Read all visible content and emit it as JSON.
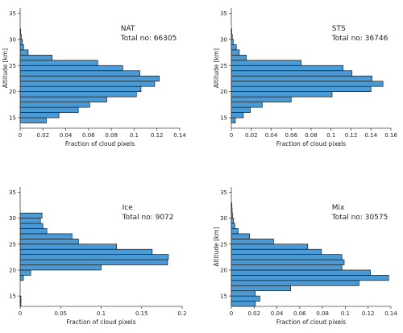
{
  "chart_data": [
    {
      "type": "bar",
      "orientation": "horizontal",
      "annotation_name": "NAT",
      "annotation_total": "Total no: 66305",
      "xlabel": "Fraction of cloud pixels",
      "ylabel": "Altitude [km]",
      "xlim": [
        0,
        0.14
      ],
      "ylim": [
        13,
        36
      ],
      "xticks": [
        "0",
        "0.02",
        "0.04",
        "0.06",
        "0.08",
        "0.1",
        "0.12",
        "0.14"
      ],
      "yticks": [
        "15",
        "20",
        "25",
        "30",
        "35"
      ],
      "bin_km": 1,
      "bins": [
        {
          "alt": 14,
          "value": 0.023
        },
        {
          "alt": 15,
          "value": 0.034
        },
        {
          "alt": 16,
          "value": 0.051
        },
        {
          "alt": 17,
          "value": 0.061
        },
        {
          "alt": 18,
          "value": 0.076
        },
        {
          "alt": 19,
          "value": 0.102
        },
        {
          "alt": 20,
          "value": 0.106
        },
        {
          "alt": 21,
          "value": 0.118
        },
        {
          "alt": 22,
          "value": 0.122
        },
        {
          "alt": 23,
          "value": 0.105
        },
        {
          "alt": 24,
          "value": 0.09
        },
        {
          "alt": 25,
          "value": 0.068
        },
        {
          "alt": 26,
          "value": 0.028
        },
        {
          "alt": 27,
          "value": 0.007
        },
        {
          "alt": 28,
          "value": 0.003
        },
        {
          "alt": 29,
          "value": 0.002
        },
        {
          "alt": 30,
          "value": 0.001
        },
        {
          "alt": 31,
          "value": 0.0005
        }
      ]
    },
    {
      "type": "bar",
      "orientation": "horizontal",
      "annotation_name": "STS",
      "annotation_total": "Total no: 36746",
      "xlabel": "Fraction of cloud pixels",
      "ylabel": "Altitude [km]",
      "xlim": [
        0,
        0.16
      ],
      "ylim": [
        13,
        36
      ],
      "xticks": [
        "0",
        "0.02",
        "0.04",
        "0.06",
        "0.08",
        "0.1",
        "0.12",
        "0.14",
        "0.16"
      ],
      "yticks": [
        "15",
        "20",
        "25",
        "30",
        "35"
      ],
      "bin_km": 1,
      "bins": [
        {
          "alt": 14,
          "value": 0.004
        },
        {
          "alt": 15,
          "value": 0.012
        },
        {
          "alt": 16,
          "value": 0.019
        },
        {
          "alt": 17,
          "value": 0.031
        },
        {
          "alt": 18,
          "value": 0.06
        },
        {
          "alt": 19,
          "value": 0.101
        },
        {
          "alt": 20,
          "value": 0.14
        },
        {
          "alt": 21,
          "value": 0.152
        },
        {
          "alt": 22,
          "value": 0.141
        },
        {
          "alt": 23,
          "value": 0.121
        },
        {
          "alt": 24,
          "value": 0.112
        },
        {
          "alt": 25,
          "value": 0.07
        },
        {
          "alt": 26,
          "value": 0.015
        },
        {
          "alt": 27,
          "value": 0.008
        },
        {
          "alt": 28,
          "value": 0.005
        },
        {
          "alt": 29,
          "value": 0.002
        },
        {
          "alt": 30,
          "value": 0.001
        },
        {
          "alt": 31,
          "value": 0.0005
        }
      ]
    },
    {
      "type": "bar",
      "orientation": "horizontal",
      "annotation_name": "Ice",
      "annotation_total": "Total no: 9072",
      "xlabel": "Fraction of cloud pixels",
      "ylabel": "",
      "xlim": [
        0,
        0.2
      ],
      "ylim": [
        13,
        36
      ],
      "xticks": [
        "0",
        "0.05",
        "0.1",
        "0.15",
        "0.2"
      ],
      "yticks": [
        "15",
        "20",
        "25",
        "30",
        "35"
      ],
      "bin_km": 1,
      "bins": [
        {
          "alt": 13,
          "value": 0.001
        },
        {
          "alt": 14,
          "value": 0.001
        },
        {
          "alt": 18,
          "value": 0.004
        },
        {
          "alt": 19,
          "value": 0.013
        },
        {
          "alt": 20,
          "value": 0.1
        },
        {
          "alt": 21,
          "value": 0.182
        },
        {
          "alt": 22,
          "value": 0.183
        },
        {
          "alt": 23,
          "value": 0.163
        },
        {
          "alt": 24,
          "value": 0.119
        },
        {
          "alt": 25,
          "value": 0.072
        },
        {
          "alt": 26,
          "value": 0.064
        },
        {
          "alt": 27,
          "value": 0.033
        },
        {
          "alt": 28,
          "value": 0.028
        },
        {
          "alt": 29,
          "value": 0.025
        },
        {
          "alt": 30,
          "value": 0.027
        }
      ]
    },
    {
      "type": "bar",
      "orientation": "horizontal",
      "annotation_name": "Mix",
      "annotation_total": "Total no: 30575",
      "xlabel": "Fraction of cloud pixels",
      "ylabel": "Altitude [km]",
      "xlim": [
        0,
        0.14
      ],
      "ylim": [
        13,
        36
      ],
      "xticks": [
        "0",
        "0.02",
        "0.04",
        "0.06",
        "0.08",
        "0.1",
        "0.12",
        "0.14"
      ],
      "yticks": [
        "15",
        "20",
        "25",
        "30",
        "35"
      ],
      "bin_km": 1,
      "bins": [
        {
          "alt": 13,
          "value": 0.021
        },
        {
          "alt": 14,
          "value": 0.025
        },
        {
          "alt": 15,
          "value": 0.021
        },
        {
          "alt": 16,
          "value": 0.052
        },
        {
          "alt": 17,
          "value": 0.112
        },
        {
          "alt": 18,
          "value": 0.138
        },
        {
          "alt": 19,
          "value": 0.122
        },
        {
          "alt": 20,
          "value": 0.097
        },
        {
          "alt": 21,
          "value": 0.099
        },
        {
          "alt": 22,
          "value": 0.097
        },
        {
          "alt": 23,
          "value": 0.079
        },
        {
          "alt": 24,
          "value": 0.067
        },
        {
          "alt": 25,
          "value": 0.037
        },
        {
          "alt": 26,
          "value": 0.016
        },
        {
          "alt": 27,
          "value": 0.006
        },
        {
          "alt": 28,
          "value": 0.003
        },
        {
          "alt": 29,
          "value": 0.002
        },
        {
          "alt": 30,
          "value": 0.001
        },
        {
          "alt": 31,
          "value": 0.0007
        },
        {
          "alt": 32,
          "value": 0.0005
        }
      ]
    }
  ],
  "colors": {
    "bar_fill": "#4a9ad6",
    "bar_edge": "#1a1a1a",
    "axis": "#444444"
  }
}
